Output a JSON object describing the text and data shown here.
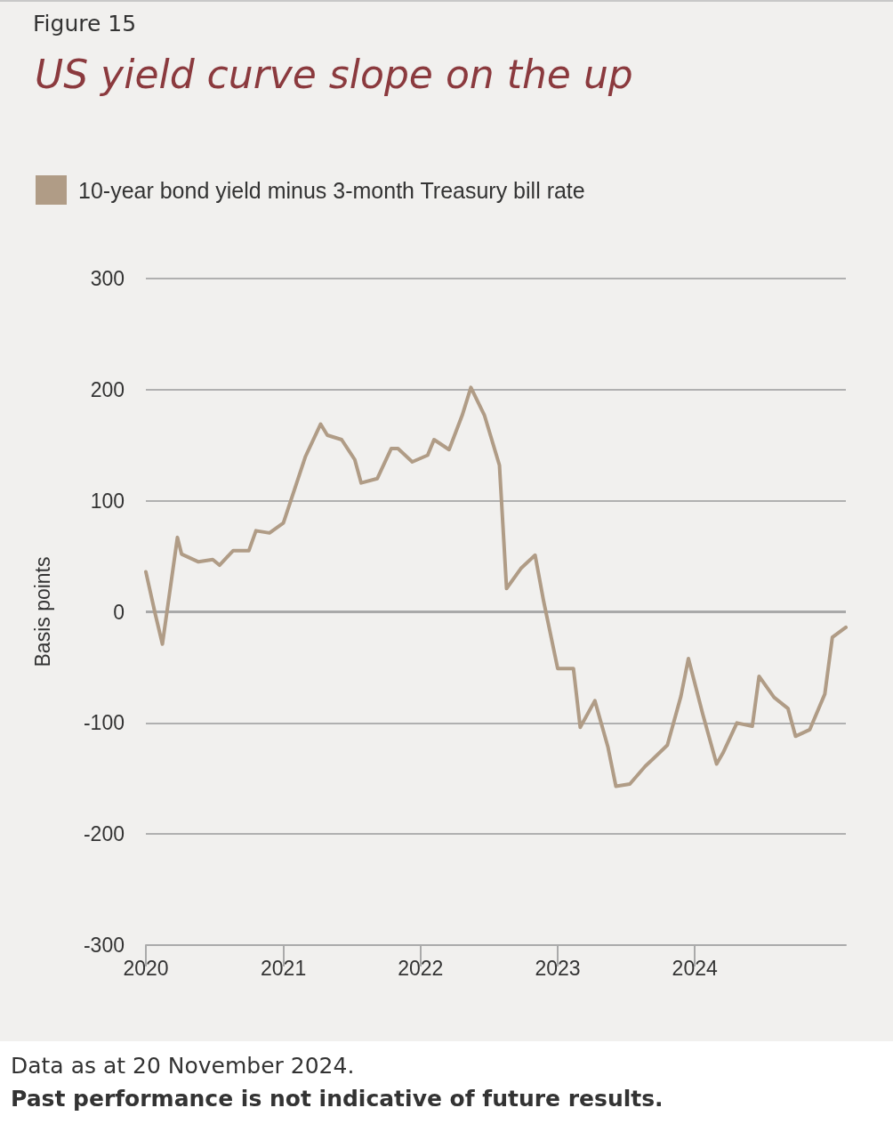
{
  "chart_data": {
    "type": "line",
    "title": "US yield curve slope on the up",
    "ylabel": "Basis points",
    "annotations": [
      "Figure 15",
      "Data as at 20 November 2024.",
      "Past performance is not indicative of future results."
    ],
    "x": [
      "2020-01-01",
      "2020-01-26",
      "2020-02-14",
      "2020-03-25",
      "2020-04-05",
      "2020-05-20",
      "2020-06-27",
      "2020-07-15",
      "2020-08-20",
      "2020-10-01",
      "2020-10-20",
      "2020-11-25",
      "2021-01-01",
      "2021-03-01",
      "2021-04-10",
      "2021-04-28",
      "2021-06-05",
      "2021-07-10",
      "2021-07-27",
      "2021-09-08",
      "2021-10-15",
      "2021-11-02",
      "2021-12-10",
      "2022-01-20",
      "2022-02-06",
      "2022-03-18",
      "2022-04-22",
      "2022-05-15",
      "2022-06-20",
      "2022-07-30",
      "2022-08-18",
      "2022-09-25",
      "2022-11-02",
      "2022-11-25",
      "2023-01-01",
      "2023-02-12",
      "2023-03-02",
      "2023-04-10",
      "2023-05-15",
      "2023-06-05",
      "2023-07-12",
      "2023-08-22",
      "2023-09-10",
      "2023-10-20",
      "2023-11-25",
      "2023-12-15",
      "2024-01-22",
      "2024-02-28",
      "2024-03-16",
      "2024-04-22",
      "2024-06-02",
      "2024-06-20",
      "2024-07-30",
      "2024-09-05",
      "2024-09-25",
      "2024-11-02",
      "2024-12-12",
      "2025-01-01",
      "2025-02-06"
    ],
    "series": [
      {
        "name": "10-year bond yield minus 3-month Treasury bill rate",
        "color": "#b09c86",
        "values": [
          36,
          -2,
          -29,
          67,
          52,
          45,
          47,
          42,
          55,
          55,
          73,
          71,
          80,
          140,
          169,
          159,
          155,
          137,
          116,
          120,
          147,
          147,
          135,
          141,
          155,
          146,
          177,
          202,
          177,
          132,
          21,
          39,
          51,
          9,
          -51,
          -51,
          -104,
          -80,
          -122,
          -157,
          -155,
          -139,
          -133,
          -120,
          -76,
          -42,
          -92,
          -137,
          -127,
          -100,
          -103,
          -58,
          -77,
          -87,
          -112,
          -106,
          -74,
          -23,
          -14
        ]
      }
    ],
    "xlim": [
      "2020-01-01",
      "2025-02-06"
    ],
    "xticks": [
      {
        "value": "2020-01-01",
        "label": "2020"
      },
      {
        "value": "2021-01-01",
        "label": "2021"
      },
      {
        "value": "2022-01-01",
        "label": "2022"
      },
      {
        "value": "2023-01-01",
        "label": "2023"
      },
      {
        "value": "2024-01-01",
        "label": "2024"
      }
    ],
    "ylim": [
      -300,
      300
    ],
    "yticks": [
      -300,
      -200,
      -100,
      0,
      100,
      200,
      300
    ],
    "ref_lines": [
      {
        "axis": "y",
        "value": 0,
        "color": "#a9a9a9"
      }
    ],
    "grid": "y",
    "legend": "top left",
    "marker": "none",
    "line_style": "solid"
  }
}
